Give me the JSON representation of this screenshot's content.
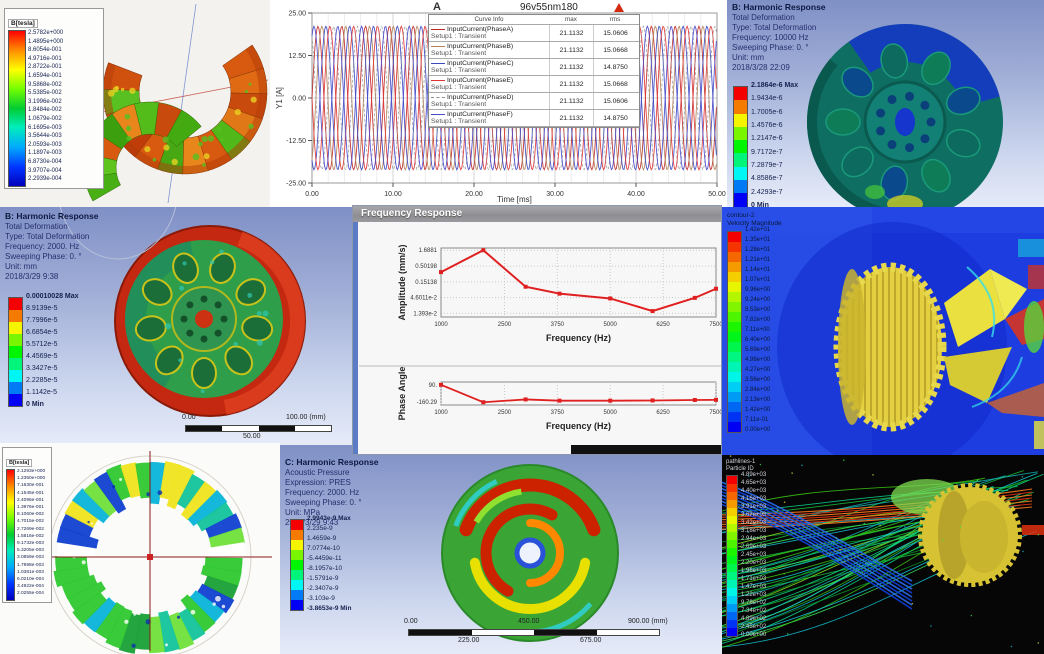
{
  "panels": {
    "maxwell_top": {
      "legend_title": "B[tesla]",
      "legend_values": [
        "2.5782e+000",
        "1.4895e+000",
        "8.6054e-001",
        "4.9716e-001",
        "2.8722e-001",
        "1.6594e-001",
        "9.5868e-002",
        "5.5385e-002",
        "3.1996e-002",
        "1.8484e-002",
        "1.0679e-002",
        "6.1695e-003",
        "3.5644e-003",
        "2.0593e-003",
        "1.1897e-003",
        "6.8730e-004",
        "3.9707e-004",
        "2.2939e-004"
      ]
    },
    "xy_plot": {
      "corner_label": "A",
      "title": "96v55nm180",
      "y_label": "Y1 [A]",
      "x_label": "Time [ms]",
      "y_ticks": [
        "25.00",
        "12.50",
        "0.00",
        "-12.50",
        "-25.00"
      ],
      "x_ticks": [
        "0.00",
        "10.00",
        "20.00",
        "30.00",
        "40.00",
        "50.00"
      ],
      "table_headers": [
        "Curve Info",
        "max",
        "rms"
      ]
    },
    "harmonic_top": {
      "header": [
        "B: Harmonic Response",
        "Total Deformation",
        "Type: Total Deformation",
        "Frequency: 10000 Hz",
        "Sweeping Phase: 0. °",
        "Unit: mm",
        "2018/3/28 22:09"
      ],
      "legend_values": [
        "2.1864e-6 Max",
        "1.9434e-6",
        "1.7005e-6",
        "1.4576e-6",
        "1.2147e-6",
        "9.7172e-7",
        "7.2879e-7",
        "4.8586e-7",
        "2.4293e-7",
        "0 Min"
      ]
    },
    "harmonic_mid": {
      "header": [
        "B: Harmonic Response",
        "Total Deformation",
        "Type: Total Deformation",
        "Frequency: 2000. Hz",
        "Sweeping Phase: 0. °",
        "Unit: mm",
        "2018/3/29 9:38"
      ],
      "legend_values": [
        "0.00010028 Max",
        "8.9139e-5",
        "7.7996e-5",
        "6.6854e-5",
        "5.5712e-5",
        "4.4569e-5",
        "3.3427e-5",
        "2.2285e-5",
        "1.1142e-5",
        "0 Min"
      ],
      "scale_left": "0.00",
      "scale_right": "100.00 (mm)",
      "scale_mid": "50.00"
    },
    "freq_window": {
      "title": "Frequency Response"
    },
    "cfd": {
      "legend_title_lines": [
        "contour-2",
        "Velocity Magnitude"
      ],
      "legend_values": [
        "1.42e+01",
        "1.35e+01",
        "1.28e+01",
        "1.21e+01",
        "1.14e+01",
        "1.07e+01",
        "9.96e+00",
        "9.24e+00",
        "8.53e+00",
        "7.82e+00",
        "7.11e+00",
        "6.40e+00",
        "5.69e+00",
        "4.98e+00",
        "4.27e+00",
        "3.56e+00",
        "2.84e+00",
        "2.13e+00",
        "1.42e+00",
        "7.11e-01",
        "0.00e+00"
      ]
    },
    "maxwell_bottom": {
      "legend_title": "B[tesla]",
      "legend_values": [
        "2.1293e+000",
        "1.2350e+000",
        "7.1630e-001",
        "4.1545e-001",
        "2.4096e-001",
        "1.3976e-001",
        "8.1060e-002",
        "4.7015e-002",
        "2.7269e-002",
        "1.5816e-002",
        "9.1732e-003",
        "5.3205e-003",
        "3.0859e-003",
        "1.7898e-003",
        "1.0381e-003",
        "6.0210e-004",
        "3.4922e-004",
        "2.0255e-004"
      ]
    },
    "acoustic": {
      "header": [
        "C: Harmonic Response",
        "Acoustic Pressure",
        "Expression: PRES",
        "Frequency: 2000. Hz",
        "Sweeping Phase: 0. °",
        "Unit: MPa",
        "2018/3/29 9:43"
      ],
      "legend_values": [
        "2.9943e-9 Max",
        "2.235e-9",
        "1.4659e-9",
        "7.0774e-10",
        "-5.4459e-11",
        "-8.1957e-10",
        "-1.5791e-9",
        "-2.3407e-9",
        "-3.103e-9",
        "-3.8653e-9 Min"
      ],
      "scale_top": [
        "0.00",
        "450.00",
        "900.00 (mm)"
      ],
      "scale_bottom": [
        "225.00",
        "675.00"
      ]
    },
    "pathlines": {
      "legend_title_lines": [
        "pathlines-1",
        "Particle ID"
      ],
      "legend_values": [
        "4.89e+03",
        "4.65e+03",
        "4.40e+03",
        "4.16e+03",
        "3.91e+03",
        "3.67e+03",
        "3.42e+03",
        "3.18e+03",
        "2.94e+03",
        "2.69e+03",
        "2.45e+03",
        "2.20e+03",
        "1.96e+03",
        "1.71e+03",
        "1.47e+03",
        "1.22e+03",
        "9.78e+02",
        "7.34e+02",
        "4.89e+02",
        "2.45e+02",
        "0.00e+00"
      ]
    }
  },
  "chart_data": [
    {
      "type": "line",
      "title": "96v55nm180",
      "xlabel": "Time [ms]",
      "ylabel": "Y1 [A]",
      "xlim": [
        0,
        50
      ],
      "ylim": [
        -25,
        25
      ],
      "x_ticks": [
        0,
        10,
        20,
        30,
        40,
        50
      ],
      "y_ticks": [
        25,
        12.5,
        0,
        -12.5,
        -25
      ],
      "grid": true,
      "waveform": {
        "amplitude": 21.1132,
        "period_ms": 2.94,
        "phases_deg": [
          0,
          -60,
          -120,
          180,
          120,
          60
        ]
      },
      "series": [
        {
          "name": "InputCurrent(PhaseA)",
          "sub": "Setup1 : Transient",
          "max": "21.1132",
          "rms": "15.0606",
          "color": "#c02828",
          "dashed": false
        },
        {
          "name": "InputCurrent(PhaseB)",
          "sub": "Setup1 : Transient",
          "max": "21.1132",
          "rms": "15.0668",
          "color": "#b5825a",
          "dashed": false
        },
        {
          "name": "InputCurrent(PhaseC)",
          "sub": "Setup1 : Transient",
          "max": "21.1132",
          "rms": "14.8750",
          "color": "#3a49c0",
          "dashed": false
        },
        {
          "name": "InputCurrent(PhaseE)",
          "sub": "Setup1 : Transient",
          "max": "21.1132",
          "rms": "15.0668",
          "color": "#e03434",
          "dashed": false
        },
        {
          "name": "InputCurrent(PhaseD)",
          "sub": "Setup1 : Transient",
          "max": "21.1132",
          "rms": "15.0606",
          "color": "#909090",
          "dashed": true
        },
        {
          "name": "InputCurrent(PhaseF)",
          "sub": "Setup1 : Transient",
          "max": "21.1132",
          "rms": "14.8750",
          "color": "#4848cc",
          "dashed": false
        }
      ]
    },
    {
      "type": "line",
      "y_scale": "log",
      "x": [
        1000,
        2000,
        3000,
        3800,
        5000,
        6000,
        7000,
        7500
      ],
      "y": [
        0.32,
        1.6881,
        0.105,
        0.062,
        0.043,
        0.0165,
        0.045,
        0.09
      ],
      "x_ticks": [
        1000,
        2500,
        3750,
        5000,
        6250,
        7500
      ],
      "y_tick_labels": [
        "1.6881",
        "0.50198",
        "0.15138",
        "4.6011e-2",
        "1.393e-2"
      ],
      "xlabel": "Frequency (Hz)",
      "ylabel": "Amplitude (mm/s)",
      "line_color": "#e02020",
      "grid": true
    },
    {
      "type": "line",
      "x": [
        1000,
        2000,
        3000,
        3800,
        5000,
        6000,
        7000,
        7500
      ],
      "y": [
        90,
        -160.29,
        -120,
        -138,
        -138,
        -135,
        -128,
        -126
      ],
      "ylim": [
        -200,
        130
      ],
      "x_ticks": [
        1000,
        2500,
        3750,
        5000,
        6250,
        7500
      ],
      "y_tick_labels": [
        "90.",
        "-160.29"
      ],
      "xlabel": "Frequency (Hz)",
      "ylabel": "Phase Angle",
      "line_color": "#e02020",
      "grid": true
    }
  ],
  "colors": {
    "ansys_gradient_top": "#7f90c6",
    "ansys_gradient_bottom": "#e6ebf8",
    "cfd_background": "#1d3de0",
    "pathlines_background": "#060606",
    "legend_max_color": "#ff0000",
    "legend_min_color": "#0000bb"
  }
}
